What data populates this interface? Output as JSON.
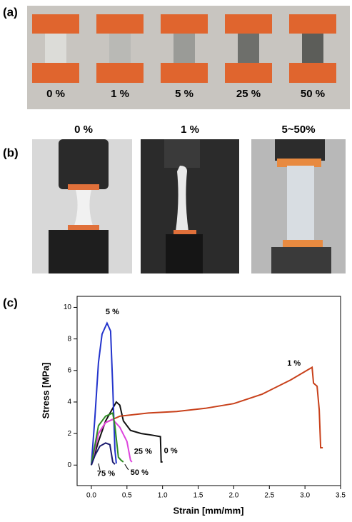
{
  "panels": {
    "a": {
      "label": "(a)",
      "samples": [
        "0 %",
        "1 %",
        "5 %",
        "25 %",
        "50 %"
      ]
    },
    "b": {
      "label": "(b)",
      "headers": [
        "0 %",
        "1 %",
        "5~50%"
      ]
    },
    "c": {
      "label": "(c)"
    }
  },
  "chart_data": {
    "type": "line",
    "xlabel": "Strain [mm/mm]",
    "ylabel": "Stress [MPa]",
    "xlim": [
      -0.2,
      3.5
    ],
    "ylim": [
      -1.3,
      10.7
    ],
    "xticks": [
      {
        "value": 0,
        "label": "0.0"
      },
      0.5,
      {
        "value": 1,
        "label": "1.0"
      },
      1.5,
      {
        "value": 2,
        "label": "2.0"
      },
      2.5,
      {
        "value": 3,
        "label": "3.0"
      },
      3.5
    ],
    "yticks": [
      0,
      2,
      4,
      6,
      8,
      10
    ],
    "series": [
      {
        "name": "0 %",
        "color": "#111111",
        "x": [
          0,
          0.1,
          0.2,
          0.3,
          0.35,
          0.4,
          0.45,
          0.55,
          0.7,
          0.85,
          0.97,
          0.98,
          1.0
        ],
        "values": [
          0,
          1.5,
          2.8,
          3.6,
          4.0,
          3.8,
          2.8,
          2.2,
          2.0,
          1.9,
          1.8,
          0.2,
          0.2
        ]
      },
      {
        "name": "1 %",
        "color": "#c8401a",
        "x": [
          0,
          0.1,
          0.2,
          0.4,
          0.8,
          1.2,
          1.6,
          2.0,
          2.4,
          2.8,
          3.1,
          3.12,
          3.17,
          3.2,
          3.22,
          3.25
        ],
        "values": [
          0,
          2.0,
          2.7,
          3.1,
          3.3,
          3.4,
          3.6,
          3.9,
          4.5,
          5.4,
          6.2,
          5.2,
          5.0,
          3.5,
          1.1,
          1.1
        ]
      },
      {
        "name": "5 %",
        "color": "#2233cc",
        "x": [
          0,
          0.05,
          0.1,
          0.15,
          0.22,
          0.27,
          0.3,
          0.33,
          0.35
        ],
        "values": [
          0,
          3,
          6.5,
          8.3,
          9.0,
          8.5,
          5,
          1,
          0.1
        ]
      },
      {
        "name": "25 %",
        "color": "#dd44dd",
        "x": [
          0,
          0.1,
          0.2,
          0.3,
          0.4,
          0.5,
          0.55,
          0.57
        ],
        "values": [
          0,
          2,
          2.7,
          2.9,
          2.4,
          1.5,
          0.3,
          0.2
        ]
      },
      {
        "name": "50 %",
        "color": "#2e8b22",
        "x": [
          0,
          0.1,
          0.2,
          0.3,
          0.33,
          0.38,
          0.42,
          0.45
        ],
        "values": [
          0,
          2.5,
          3.1,
          3.3,
          2.5,
          0.5,
          0.3,
          0.2
        ]
      },
      {
        "name": "75 %",
        "color": "#1a1a6e",
        "x": [
          0,
          0.05,
          0.12,
          0.2,
          0.26,
          0.3,
          0.33
        ],
        "values": [
          0,
          0.6,
          1.2,
          1.4,
          1.3,
          0.2,
          0.05
        ]
      }
    ]
  }
}
